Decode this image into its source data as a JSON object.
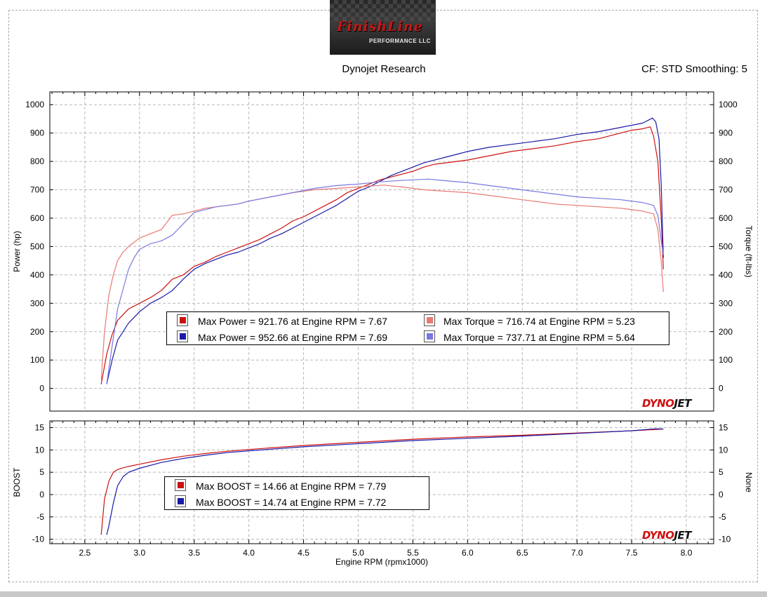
{
  "header": {
    "logo_text": "FinishLine",
    "logo_subtext": "PERFORMANCE LLC",
    "title": "Dynojet Research",
    "cf_text": "CF: STD Smoothing: 5"
  },
  "watermark": {
    "part1": "DYNO",
    "part2": "JET"
  },
  "colors": {
    "red_power": "#cc1111",
    "blue_power": "#1a1aa8",
    "red_torque": "#e87a72",
    "blue_torque": "#7878e0"
  },
  "chart_data": [
    {
      "type": "line",
      "xlabel": "Engine RPM (rpmx1000)",
      "ylabel": "Power (hp)",
      "y2label": "Torque (ft-lbs)",
      "xlim": [
        2.18,
        8.25
      ],
      "ylim": [
        -80,
        1045
      ],
      "xticks": [
        "2.5",
        "3.0",
        "3.5",
        "4.0",
        "4.5",
        "5.0",
        "5.5",
        "6.0",
        "6.5",
        "7.0",
        "7.5",
        "8.0"
      ],
      "yticks": [
        "1000",
        "900",
        "800",
        "700",
        "600",
        "500",
        "400",
        "300",
        "200",
        "100",
        "0"
      ],
      "y2ticks": [
        "1000",
        "900",
        "800",
        "700",
        "600",
        "500",
        "400",
        "300",
        "200",
        "100",
        "0"
      ],
      "grid": true,
      "legend_position": "center",
      "legend": [
        "Max Power = 921.76 at Engine RPM = 7.67",
        "Max Power = 952.66 at Engine RPM = 7.69",
        "Max Torque = 716.74 at Engine RPM = 5.23",
        "Max Torque = 737.71 at Engine RPM = 5.64"
      ],
      "series": [
        {
          "color": "#cc1111",
          "x": [
            2.65,
            2.7,
            2.75,
            2.8,
            2.9,
            3.0,
            3.1,
            3.2,
            3.3,
            3.4,
            3.5,
            3.6,
            3.7,
            3.8,
            3.9,
            4.0,
            4.1,
            4.2,
            4.3,
            4.4,
            4.5,
            4.6,
            4.7,
            4.8,
            4.9,
            5.0,
            5.1,
            5.2,
            5.3,
            5.4,
            5.5,
            5.6,
            5.7,
            5.8,
            5.9,
            6.0,
            6.2,
            6.4,
            6.6,
            6.8,
            7.0,
            7.2,
            7.4,
            7.5,
            7.6,
            7.67,
            7.7,
            7.74,
            7.77,
            7.79
          ],
          "y": [
            15,
            120,
            190,
            240,
            280,
            300,
            320,
            345,
            385,
            400,
            430,
            445,
            465,
            480,
            495,
            510,
            525,
            545,
            565,
            590,
            605,
            625,
            645,
            665,
            690,
            705,
            720,
            735,
            745,
            755,
            765,
            780,
            790,
            795,
            800,
            805,
            820,
            835,
            845,
            855,
            870,
            880,
            900,
            910,
            915,
            921.76,
            890,
            800,
            600,
            420
          ]
        },
        {
          "color": "#1a1aa8",
          "x": [
            2.7,
            2.75,
            2.8,
            2.9,
            3.0,
            3.1,
            3.2,
            3.3,
            3.4,
            3.5,
            3.6,
            3.7,
            3.8,
            3.9,
            4.0,
            4.1,
            4.2,
            4.3,
            4.4,
            4.5,
            4.6,
            4.7,
            4.8,
            4.9,
            5.0,
            5.1,
            5.2,
            5.3,
            5.4,
            5.5,
            5.6,
            5.7,
            5.8,
            5.9,
            6.0,
            6.2,
            6.4,
            6.6,
            6.8,
            7.0,
            7.2,
            7.4,
            7.6,
            7.69,
            7.72,
            7.75,
            7.77,
            7.79
          ],
          "y": [
            15,
            100,
            170,
            230,
            270,
            300,
            320,
            345,
            385,
            420,
            440,
            455,
            470,
            480,
            495,
            510,
            530,
            545,
            565,
            585,
            605,
            625,
            645,
            670,
            695,
            710,
            730,
            750,
            765,
            780,
            795,
            805,
            815,
            825,
            835,
            850,
            860,
            870,
            880,
            895,
            905,
            920,
            935,
            952.66,
            940,
            880,
            720,
            460
          ]
        },
        {
          "color": "#e87a72",
          "x": [
            2.65,
            2.68,
            2.72,
            2.76,
            2.8,
            2.85,
            2.9,
            2.95,
            3.0,
            3.1,
            3.2,
            3.3,
            3.4,
            3.5,
            3.6,
            3.7,
            3.8,
            3.9,
            4.0,
            4.2,
            4.4,
            4.6,
            4.8,
            5.0,
            5.23,
            5.4,
            5.6,
            5.8,
            6.0,
            6.2,
            6.4,
            6.6,
            6.8,
            7.0,
            7.2,
            7.4,
            7.6,
            7.7,
            7.74,
            7.77,
            7.79
          ],
          "y": [
            30,
            200,
            330,
            400,
            450,
            480,
            500,
            515,
            530,
            545,
            560,
            610,
            615,
            625,
            635,
            640,
            645,
            650,
            660,
            675,
            690,
            700,
            705,
            710,
            716.74,
            710,
            700,
            695,
            690,
            680,
            670,
            660,
            650,
            645,
            640,
            635,
            625,
            615,
            560,
            450,
            340
          ]
        },
        {
          "color": "#7878e0",
          "x": [
            2.7,
            2.75,
            2.8,
            2.85,
            2.9,
            2.95,
            3.0,
            3.1,
            3.2,
            3.3,
            3.4,
            3.5,
            3.6,
            3.7,
            3.8,
            3.9,
            4.0,
            4.2,
            4.4,
            4.6,
            4.8,
            5.0,
            5.2,
            5.4,
            5.64,
            5.8,
            6.0,
            6.2,
            6.4,
            6.6,
            6.8,
            7.0,
            7.2,
            7.4,
            7.6,
            7.7,
            7.74,
            7.77,
            7.79
          ],
          "y": [
            15,
            150,
            280,
            350,
            420,
            460,
            490,
            510,
            520,
            540,
            580,
            620,
            630,
            640,
            645,
            650,
            660,
            675,
            690,
            705,
            715,
            720,
            728,
            733,
            737.71,
            732,
            725,
            715,
            705,
            695,
            685,
            675,
            670,
            665,
            655,
            645,
            610,
            520,
            470
          ]
        }
      ]
    },
    {
      "type": "line",
      "xlabel": "Engine RPM (rpmx1000)",
      "ylabel": "BOOST",
      "y2label": "None",
      "xlim": [
        2.18,
        8.25
      ],
      "ylim": [
        -11,
        16.5
      ],
      "xticks": [
        "2.5",
        "3.0",
        "3.5",
        "4.0",
        "4.5",
        "5.0",
        "5.5",
        "6.0",
        "6.5",
        "7.0",
        "7.5",
        "8.0"
      ],
      "yticks": [
        "15",
        "10",
        "5",
        "0",
        "-5",
        "-10"
      ],
      "y2ticks": [
        "15",
        "10",
        "5",
        "0",
        "-5",
        "-10"
      ],
      "grid": true,
      "legend_position": "center-left",
      "legend": [
        "Max BOOST = 14.66 at Engine RPM = 7.79",
        "Max BOOST = 14.74 at Engine RPM = 7.72"
      ],
      "series": [
        {
          "color": "#cc1111",
          "x": [
            2.65,
            2.68,
            2.72,
            2.76,
            2.8,
            2.85,
            2.9,
            3.0,
            3.2,
            3.4,
            3.6,
            3.8,
            4.0,
            4.5,
            5.0,
            5.5,
            6.0,
            6.5,
            7.0,
            7.5,
            7.79
          ],
          "y": [
            -9,
            -1,
            3,
            5,
            5.6,
            6.0,
            6.3,
            6.8,
            7.8,
            8.6,
            9.2,
            9.7,
            10.1,
            11.0,
            11.7,
            12.4,
            12.9,
            13.3,
            13.8,
            14.3,
            14.66
          ]
        },
        {
          "color": "#1a1aa8",
          "x": [
            2.7,
            2.72,
            2.76,
            2.8,
            2.85,
            2.9,
            3.0,
            3.2,
            3.4,
            3.6,
            3.8,
            4.0,
            4.5,
            5.0,
            5.5,
            6.0,
            6.5,
            7.0,
            7.5,
            7.72,
            7.79
          ],
          "y": [
            -9,
            -7,
            -2,
            2.0,
            4.0,
            5.0,
            5.9,
            7.2,
            8.1,
            8.8,
            9.4,
            9.8,
            10.7,
            11.4,
            12.1,
            12.6,
            13.1,
            13.7,
            14.3,
            14.74,
            14.7
          ]
        }
      ]
    }
  ]
}
